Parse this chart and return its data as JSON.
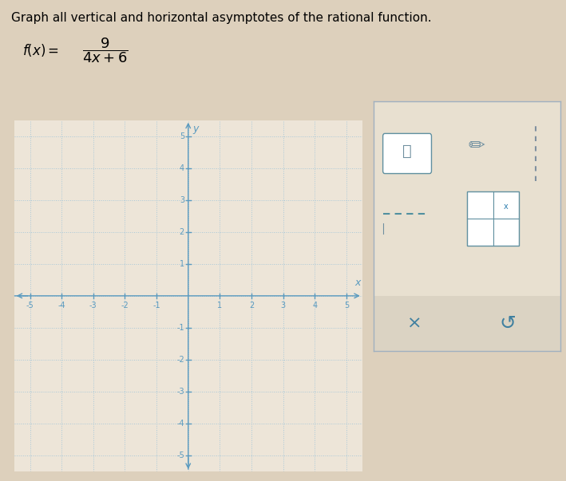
{
  "title": "Graph all vertical and horizontal asymptotes of the rational function.",
  "xlim": [
    -5.5,
    5.5
  ],
  "ylim": [
    -5.5,
    5.5
  ],
  "xticks": [
    -5,
    -4,
    -3,
    -2,
    -1,
    1,
    2,
    3,
    4,
    5
  ],
  "yticks": [
    -5,
    -4,
    -3,
    -2,
    -1,
    1,
    2,
    3,
    4,
    5
  ],
  "grid_color": "#a8c8d8",
  "axis_color": "#5a9abf",
  "tick_label_color": "#5a9abf",
  "background_color": "#f0e8dc",
  "graph_bg_color": "#ede5d8",
  "outer_background": "#ddd0bc",
  "grid_linestyle": ":",
  "grid_linewidth": 0.7,
  "axis_linewidth": 1.0,
  "title_fontsize": 11,
  "tick_fontsize": 7,
  "panel_bg": "#e8e0d0",
  "panel_border": "#a0b0c0",
  "panel_bottom_bg": "#d8d0c0"
}
